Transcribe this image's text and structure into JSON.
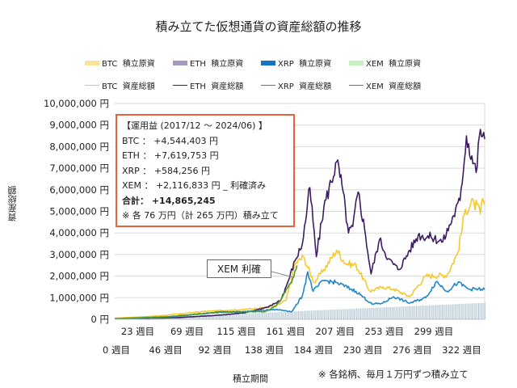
{
  "chart_data": {
    "type": "line",
    "title": "積み立てた仮想通貨の資産総額の推移",
    "xlabel": "積立期間",
    "ylabel": "資産総額",
    "ylim": [
      0,
      10000000
    ],
    "xlim": [
      0,
      345
    ],
    "grid": true,
    "legend_position": "top",
    "y_ticks": [
      "0 円",
      "1,000,000 円",
      "2,000,000 円",
      "3,000,000 円",
      "4,000,000 円",
      "5,000,000 円",
      "6,000,000 円",
      "7,000,000 円",
      "8,000,000 円",
      "9,000,000 円",
      "10,000,000 円"
    ],
    "x_ticks_row1": [
      "23 週目",
      "69 週目",
      "115 週目",
      "161 週目",
      "207 週目",
      "253 週目",
      "299 週目"
    ],
    "x_ticks_row2": [
      "0 週目",
      "46 週目",
      "92 週目",
      "138 週目",
      "184 週目",
      "230 週目",
      "276 週目",
      "322 週目"
    ],
    "legend": [
      {
        "label": "BTC  積立原資",
        "kind": "area",
        "color": "#fbe39a"
      },
      {
        "label": "ETH  積立原資",
        "kind": "area",
        "color": "#a597c2"
      },
      {
        "label": "XRP  積立原資",
        "kind": "area",
        "color": "#1673c4"
      },
      {
        "label": "XEM  積立原資",
        "kind": "area",
        "color": "#c7f0c0"
      },
      {
        "label": "BTC  資産総額",
        "kind": "line",
        "color": "#f5c92f"
      },
      {
        "label": "ETH  資産総額",
        "kind": "line",
        "color": "#3d1c63"
      },
      {
        "label": "XRP  資産総額",
        "kind": "line",
        "color": "#2188c9"
      },
      {
        "label": "XEM  資産総額",
        "kind": "line",
        "color": "#4a9a2a"
      }
    ],
    "principal": {
      "name": "積立原資",
      "color": "#b7c9d3",
      "points": [
        [
          0,
          0
        ],
        [
          345,
          760000
        ]
      ]
    },
    "series": [
      {
        "name": "BTC 資産総額",
        "color": "#f5c92f",
        "points": [
          [
            0,
            50000
          ],
          [
            40,
            150000
          ],
          [
            85,
            370000
          ],
          [
            120,
            450000
          ],
          [
            150,
            600000
          ],
          [
            160,
            900000
          ],
          [
            168,
            2550000
          ],
          [
            176,
            2900000
          ],
          [
            186,
            1700000
          ],
          [
            195,
            2300000
          ],
          [
            207,
            3200000
          ],
          [
            215,
            2600000
          ],
          [
            225,
            2500000
          ],
          [
            238,
            1300000
          ],
          [
            250,
            1500000
          ],
          [
            260,
            1400000
          ],
          [
            275,
            1050000
          ],
          [
            290,
            2000000
          ],
          [
            310,
            2050000
          ],
          [
            320,
            3100000
          ],
          [
            327,
            5100000
          ],
          [
            335,
            5400000
          ],
          [
            341,
            4900000
          ],
          [
            343,
            5600000
          ],
          [
            345,
            5300000
          ]
        ]
      },
      {
        "name": "ETH 資産総額",
        "color": "#3d1c63",
        "points": [
          [
            0,
            20000
          ],
          [
            60,
            80000
          ],
          [
            100,
            200000
          ],
          [
            120,
            300000
          ],
          [
            143,
            560000
          ],
          [
            155,
            900000
          ],
          [
            162,
            1800000
          ],
          [
            168,
            2700000
          ],
          [
            175,
            3500000
          ],
          [
            182,
            6100000
          ],
          [
            188,
            2900000
          ],
          [
            195,
            5200000
          ],
          [
            207,
            7300000
          ],
          [
            212,
            6200000
          ],
          [
            218,
            4000000
          ],
          [
            222,
            4300000
          ],
          [
            227,
            5900000
          ],
          [
            233,
            4200000
          ],
          [
            239,
            2100000
          ],
          [
            247,
            3700000
          ],
          [
            255,
            2800000
          ],
          [
            265,
            2300000
          ],
          [
            275,
            3200000
          ],
          [
            283,
            3900000
          ],
          [
            295,
            3800000
          ],
          [
            306,
            3600000
          ],
          [
            316,
            4800000
          ],
          [
            322,
            5500000
          ],
          [
            328,
            8500000
          ],
          [
            337,
            6800000
          ],
          [
            341,
            8800000
          ],
          [
            345,
            8350000
          ]
        ]
      },
      {
        "name": "XRP 資産総額",
        "color": "#2188c9",
        "points": [
          [
            0,
            10000
          ],
          [
            50,
            100000
          ],
          [
            90,
            300000
          ],
          [
            120,
            350000
          ],
          [
            150,
            450000
          ],
          [
            160,
            400000
          ],
          [
            165,
            350000
          ],
          [
            170,
            700000
          ],
          [
            175,
            1100000
          ],
          [
            180,
            2200000
          ],
          [
            185,
            1300000
          ],
          [
            195,
            1800000
          ],
          [
            207,
            1700000
          ],
          [
            225,
            1300000
          ],
          [
            240,
            700000
          ],
          [
            250,
            750000
          ],
          [
            260,
            1050000
          ],
          [
            275,
            750000
          ],
          [
            290,
            1000000
          ],
          [
            300,
            1750000
          ],
          [
            310,
            1300000
          ],
          [
            320,
            1700000
          ],
          [
            330,
            1400000
          ],
          [
            345,
            1380000
          ]
        ]
      },
      {
        "name": "XEM 資産総額",
        "color": "#4a9a2a",
        "points": [
          [
            0,
            30000
          ],
          [
            50,
            120000
          ],
          [
            100,
            350000
          ],
          [
            140,
            350000
          ],
          [
            150,
            600000
          ],
          [
            155,
            900000
          ],
          [
            160,
            1400000
          ],
          [
            165,
            1700000
          ],
          [
            170,
            2500000
          ]
        ]
      }
    ],
    "annotation_box": {
      "heading": "【運用益 (2017/12 ～ 2024/06) 】",
      "lines": [
        "BTC ： +4,544,403 円",
        "ETH ： +7,619,753 円",
        "XRP ： +584,256 円",
        "XEM ： +2,116,833 円 _ 利確済み"
      ],
      "total": "合計： +14,865,245",
      "footnote": "※ 各 76 万円（計 265 万円）積み立て",
      "border_color": "#e8603c"
    },
    "callout": "XEM 利確",
    "note": "※ 各銘柄、毎月１万円ずつ積み立て"
  }
}
